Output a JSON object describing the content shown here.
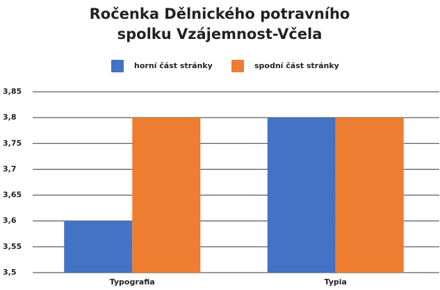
{
  "chart_data": {
    "type": "bar",
    "title": "Ročenka Dělnického potravního spolku Vzájemnost-Včela",
    "categories": [
      "Typografia",
      "Typia"
    ],
    "series": [
      {
        "name": "horní část stránky",
        "color": "#4472c4",
        "values": [
          3.6,
          3.8
        ]
      },
      {
        "name": "spodní část stránky",
        "color": "#ed7d31",
        "values": [
          3.8,
          3.8
        ]
      }
    ],
    "ylim": [
      3.5,
      3.85
    ],
    "yticks": [
      {
        "value": 3.5,
        "label": "3,5"
      },
      {
        "value": 3.55,
        "label": "3,55"
      },
      {
        "value": 3.6,
        "label": "3,6"
      },
      {
        "value": 3.65,
        "label": "3,65"
      },
      {
        "value": 3.7,
        "label": "3,7"
      },
      {
        "value": 3.75,
        "label": "3,75"
      },
      {
        "value": 3.8,
        "label": "3,8"
      },
      {
        "value": 3.85,
        "label": "3,85"
      }
    ],
    "grid": true,
    "legend": "top"
  }
}
